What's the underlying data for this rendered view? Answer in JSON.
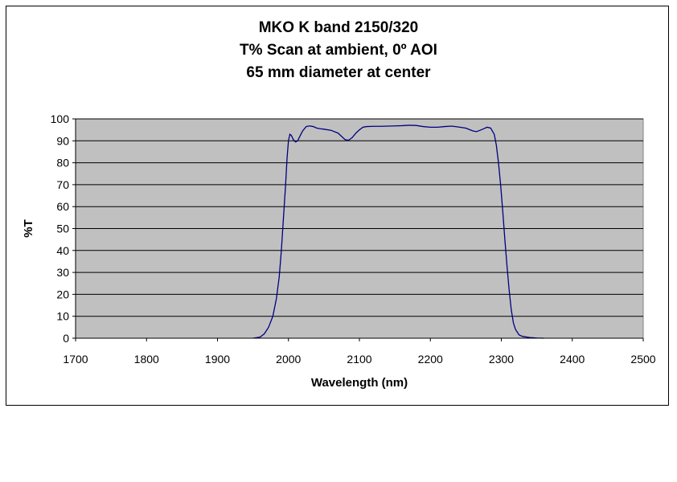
{
  "chart_data": {
    "type": "line",
    "title_lines": [
      "MKO K band 2150/320",
      "T%  Scan at ambient, 0º AOI",
      "65 mm diameter at center"
    ],
    "xlabel": "Wavelength (nm)",
    "ylabel": "%T",
    "xlim": [
      1700,
      2500
    ],
    "ylim": [
      0,
      100
    ],
    "xticks": [
      1700,
      1800,
      1900,
      2000,
      2100,
      2200,
      2300,
      2400,
      2500
    ],
    "yticks": [
      0,
      10,
      20,
      30,
      40,
      50,
      60,
      70,
      80,
      90,
      100
    ],
    "grid": "horizontal",
    "plot_background": "#c0c0c0",
    "line_color": "#000080",
    "series": [
      {
        "x": [
          1950,
          1960,
          1966,
          1972,
          1978,
          1983,
          1987,
          1990,
          1993,
          1996,
          1998,
          2000,
          2002,
          2004,
          2007,
          2010,
          2013,
          2016,
          2020,
          2025,
          2030,
          2035,
          2040,
          2045,
          2050,
          2060,
          2070,
          2075,
          2080,
          2085,
          2090,
          2095,
          2100,
          2105,
          2110,
          2120,
          2130,
          2140,
          2150,
          2160,
          2170,
          2180,
          2190,
          2200,
          2210,
          2220,
          2230,
          2240,
          2250,
          2260,
          2265,
          2270,
          2275,
          2280,
          2285,
          2290,
          2293,
          2296,
          2299,
          2302,
          2305,
          2308,
          2311,
          2314,
          2317,
          2320,
          2325,
          2330,
          2340,
          2350,
          2360
        ],
        "y": [
          0,
          0.5,
          2,
          5,
          10,
          18,
          28,
          40,
          55,
          70,
          82,
          90,
          93,
          92.5,
          90.5,
          89.5,
          90,
          92,
          94.5,
          96.5,
          96.8,
          96.5,
          95.8,
          95.5,
          95.3,
          94.8,
          93.5,
          92,
          90.5,
          90.3,
          91.5,
          93.5,
          95,
          96.2,
          96.5,
          96.6,
          96.6,
          96.7,
          96.8,
          96.9,
          97.1,
          97,
          96.5,
          96.2,
          96.2,
          96.5,
          96.7,
          96.3,
          95.8,
          94.5,
          94.2,
          94.8,
          95.5,
          96.2,
          95.8,
          93,
          88,
          80,
          70,
          58,
          45,
          33,
          22,
          13,
          7,
          4,
          1.5,
          0.8,
          0.3,
          0.1,
          0
        ]
      }
    ]
  }
}
